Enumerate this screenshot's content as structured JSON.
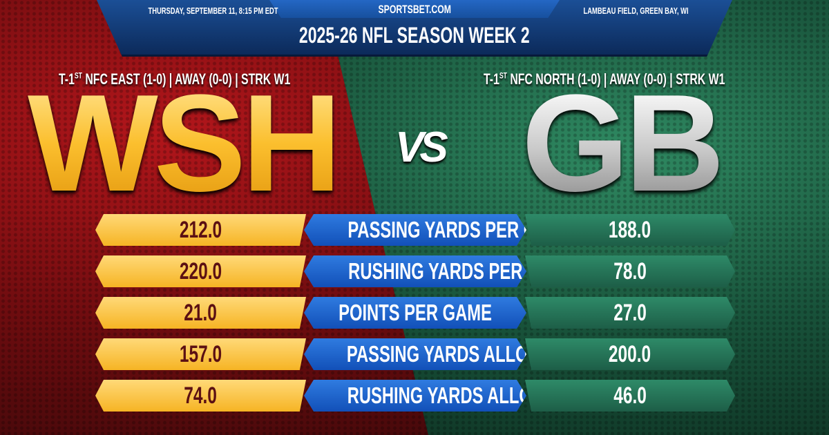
{
  "header": {
    "date": "THURSDAY, SEPTEMBER 11, 8:15 PM EDT",
    "site": "SPORTSBET.COM",
    "venue": "LAMBEAU FIELD, GREEN BAY, WI",
    "title": "2025-26 NFL SEASON WEEK 2"
  },
  "away": {
    "abbr": "WSH",
    "rank_prefix": "T-1",
    "rank_sup": "ST",
    "record": "NFC EAST (1-0) | AWAY (0-0) | STRK W1",
    "color": "#fbb92a"
  },
  "home": {
    "abbr": "GB",
    "rank_prefix": "T-1",
    "rank_sup": "ST",
    "record": "NFC NORTH (1-0) | AWAY (0-0) | STRK W1",
    "color": "#1d5e47"
  },
  "vs": "VS",
  "stats": [
    {
      "label": "PASSING YARDS PER GAME",
      "away": "212.0",
      "home": "188.0"
    },
    {
      "label": "RUSHING YARDS PER GAME",
      "away": "220.0",
      "home": "78.0"
    },
    {
      "label": "POINTS PER GAME",
      "away": "21.0",
      "home": "27.0"
    },
    {
      "label": "PASSING YARDS ALLOWED",
      "away": "157.0",
      "home": "200.0"
    },
    {
      "label": "RUSHING YARDS ALLOWED",
      "away": "74.0",
      "home": "46.0"
    }
  ]
}
